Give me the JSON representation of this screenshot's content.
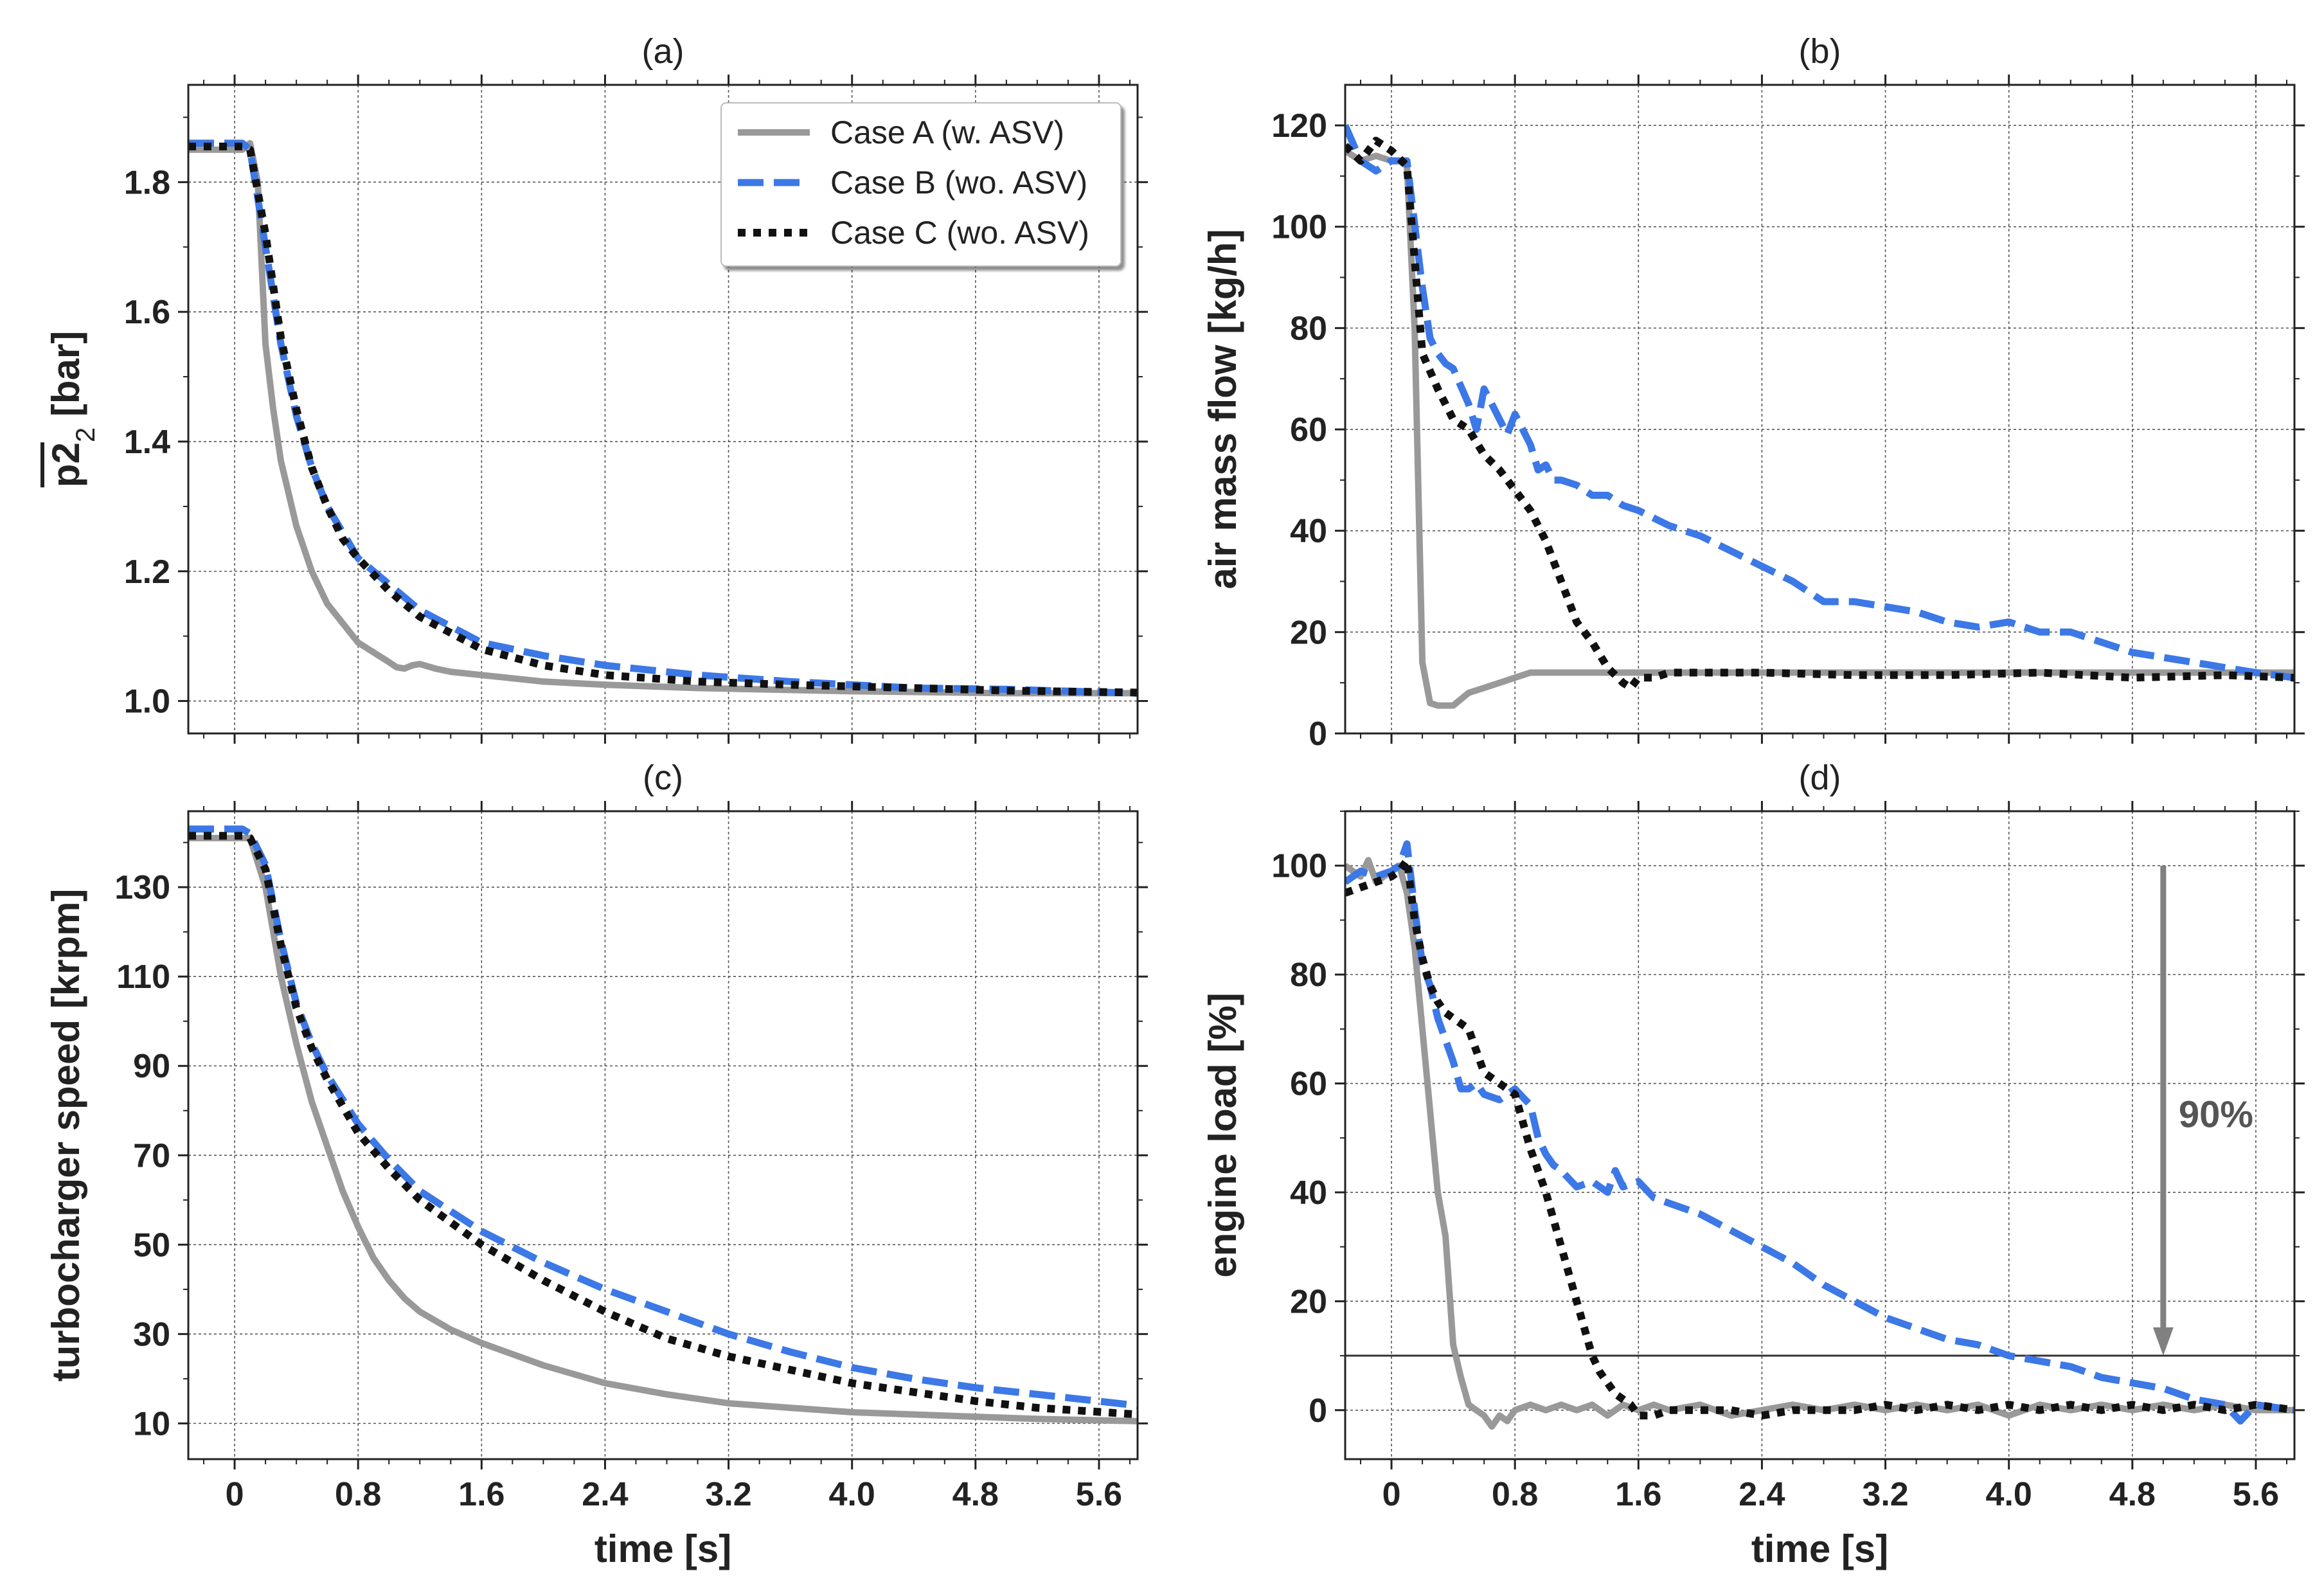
{
  "colors": {
    "case_a": "#999999",
    "case_b": "#3c78e6",
    "case_c": "#111111",
    "threshold": "#333333",
    "arrow": "#808080"
  },
  "legend": [
    "Case A (w.   ASV)",
    "Case B (wo. ASV)",
    "Case C (wo. ASV)"
  ],
  "chart_data": [
    {
      "id": "a",
      "type": "line",
      "title": "(a)",
      "xlabel": "",
      "ylabel": "p2 [bar]",
      "ylabel_subscript": "2",
      "ylabel_unit": " [bar]",
      "xlim": [
        -0.3,
        5.85
      ],
      "ylim": [
        0.95,
        1.95
      ],
      "xticks": [
        0,
        0.8,
        1.6,
        2.4,
        3.2,
        4.0,
        4.8,
        5.6
      ],
      "xtick_labels": [],
      "yticks": [
        1.0,
        1.2,
        1.4,
        1.6,
        1.8
      ],
      "ytick_labels": [
        "1.0",
        "1.2",
        "1.4",
        "1.6",
        "1.8"
      ],
      "legend_loc": "upper right",
      "series": [
        {
          "name": "Case A (w.   ASV)",
          "x": [
            -0.3,
            0.05,
            0.1,
            0.15,
            0.2,
            0.25,
            0.3,
            0.4,
            0.5,
            0.6,
            0.7,
            0.8,
            0.9,
            1.0,
            1.05,
            1.1,
            1.15,
            1.2,
            1.3,
            1.4,
            1.6,
            2.0,
            2.4,
            3.0,
            4.0,
            5.0,
            5.85
          ],
          "y": [
            1.85,
            1.85,
            1.86,
            1.8,
            1.55,
            1.45,
            1.37,
            1.27,
            1.2,
            1.15,
            1.12,
            1.09,
            1.075,
            1.06,
            1.052,
            1.05,
            1.055,
            1.057,
            1.05,
            1.045,
            1.04,
            1.03,
            1.025,
            1.02,
            1.015,
            1.012,
            1.012
          ]
        },
        {
          "name": "Case B (wo. ASV)",
          "x": [
            -0.3,
            0.05,
            0.1,
            0.2,
            0.3,
            0.4,
            0.5,
            0.6,
            0.7,
            0.8,
            1.0,
            1.2,
            1.6,
            2.0,
            2.4,
            3.0,
            3.6,
            4.4,
            5.0,
            5.85
          ],
          "y": [
            1.86,
            1.86,
            1.85,
            1.7,
            1.55,
            1.44,
            1.36,
            1.3,
            1.26,
            1.22,
            1.18,
            1.14,
            1.09,
            1.07,
            1.055,
            1.04,
            1.03,
            1.02,
            1.018,
            1.012
          ]
        },
        {
          "name": "Case C (wo. ASV)",
          "x": [
            -0.3,
            0.05,
            0.1,
            0.2,
            0.3,
            0.4,
            0.5,
            0.6,
            0.7,
            0.8,
            1.0,
            1.2,
            1.6,
            2.0,
            2.4,
            3.0,
            3.6,
            4.4,
            5.0,
            5.85
          ],
          "y": [
            1.855,
            1.855,
            1.85,
            1.72,
            1.56,
            1.45,
            1.36,
            1.3,
            1.25,
            1.22,
            1.17,
            1.13,
            1.08,
            1.055,
            1.04,
            1.03,
            1.025,
            1.02,
            1.016,
            1.013
          ]
        }
      ]
    },
    {
      "id": "b",
      "type": "line",
      "title": "(b)",
      "xlabel": "",
      "ylabel": "air mass flow [kg/h]",
      "xlim": [
        -0.3,
        5.85
      ],
      "ylim": [
        0,
        128
      ],
      "xticks": [
        0,
        0.8,
        1.6,
        2.4,
        3.2,
        4.0,
        4.8,
        5.6
      ],
      "xtick_labels": [],
      "yticks": [
        0,
        20,
        40,
        60,
        80,
        100,
        120
      ],
      "ytick_labels": [
        "0",
        "20",
        "40",
        "60",
        "80",
        "100",
        "120"
      ],
      "series": [
        {
          "name": "Case A (w.   ASV)",
          "x": [
            -0.3,
            -0.2,
            -0.1,
            0.0,
            0.05,
            0.1,
            0.15,
            0.2,
            0.25,
            0.3,
            0.35,
            0.4,
            0.5,
            0.6,
            0.7,
            0.8,
            0.9,
            5.85
          ],
          "y": [
            115,
            113,
            114,
            113,
            113,
            112,
            80,
            14,
            6,
            5.5,
            5.5,
            5.5,
            8,
            9,
            10,
            11,
            12,
            12
          ]
        },
        {
          "name": "Case B (wo. ASV)",
          "x": [
            -0.3,
            -0.2,
            -0.1,
            0.0,
            0.1,
            0.2,
            0.25,
            0.3,
            0.35,
            0.4,
            0.5,
            0.55,
            0.6,
            0.65,
            0.7,
            0.75,
            0.8,
            0.85,
            0.9,
            0.95,
            1.0,
            1.05,
            1.1,
            1.2,
            1.3,
            1.4,
            1.5,
            1.6,
            1.8,
            2.0,
            2.2,
            2.4,
            2.6,
            2.8,
            3.0,
            3.2,
            3.4,
            3.6,
            3.8,
            4.0,
            4.2,
            4.4,
            4.6,
            4.8,
            5.0,
            5.2,
            5.4,
            5.6,
            5.85
          ],
          "y": [
            120,
            113,
            111,
            113,
            113,
            88,
            78,
            75,
            73,
            72,
            65,
            60,
            68,
            65,
            62,
            59,
            63,
            60,
            57,
            52,
            53,
            50,
            50,
            49,
            47,
            47,
            45,
            44,
            41,
            39,
            36,
            33,
            30,
            26,
            26,
            25,
            24,
            22,
            21,
            22,
            20,
            20,
            18,
            16,
            15,
            14,
            13,
            12,
            11
          ]
        },
        {
          "name": "Case C (wo. ASV)",
          "x": [
            -0.3,
            -0.2,
            -0.1,
            0.0,
            0.1,
            0.2,
            0.3,
            0.4,
            0.5,
            0.6,
            0.7,
            0.8,
            0.9,
            1.0,
            1.1,
            1.2,
            1.3,
            1.4,
            1.5,
            1.55,
            1.6,
            1.7,
            1.8,
            2.0,
            2.4,
            3.0,
            3.6,
            4.2,
            4.8,
            5.4,
            5.85
          ],
          "y": [
            116,
            113,
            117,
            115,
            112,
            75,
            68,
            62,
            60,
            55,
            52,
            48,
            44,
            38,
            30,
            22,
            18,
            13,
            10,
            9,
            11,
            11,
            12,
            12,
            12,
            11.5,
            11.5,
            12,
            11,
            11.5,
            11
          ]
        }
      ]
    },
    {
      "id": "c",
      "type": "line",
      "title": "(c)",
      "xlabel": "time [s]",
      "ylabel": "turbocharger speed [krpm]",
      "xlim": [
        -0.3,
        5.85
      ],
      "ylim": [
        2,
        147
      ],
      "xticks": [
        0,
        0.8,
        1.6,
        2.4,
        3.2,
        4.0,
        4.8,
        5.6
      ],
      "xtick_labels": [
        "0",
        "0.8",
        "1.6",
        "2.4",
        "3.2",
        "4.0",
        "4.8",
        "5.6"
      ],
      "yticks": [
        10,
        30,
        50,
        70,
        90,
        110,
        130
      ],
      "ytick_labels": [
        "10",
        "30",
        "50",
        "70",
        "90",
        "110",
        "130"
      ],
      "series": [
        {
          "name": "Case A (w.   ASV)",
          "x": [
            -0.3,
            0.05,
            0.1,
            0.2,
            0.3,
            0.4,
            0.5,
            0.6,
            0.7,
            0.8,
            0.9,
            1.0,
            1.1,
            1.2,
            1.4,
            1.6,
            2.0,
            2.4,
            2.8,
            3.2,
            3.6,
            4.0,
            4.4,
            4.8,
            5.2,
            5.85
          ],
          "y": [
            141,
            141,
            141,
            130,
            110,
            95,
            82,
            72,
            62,
            54,
            47,
            42,
            38,
            35,
            31,
            28,
            23,
            19,
            16.5,
            14.5,
            13.5,
            12.5,
            12,
            11.5,
            11,
            10.5
          ]
        },
        {
          "name": "Case B (wo. ASV)",
          "x": [
            -0.3,
            0.05,
            0.1,
            0.2,
            0.3,
            0.4,
            0.5,
            0.6,
            0.8,
            1.0,
            1.2,
            1.6,
            2.0,
            2.4,
            2.8,
            3.2,
            3.6,
            4.0,
            4.4,
            4.8,
            5.2,
            5.85
          ],
          "y": [
            143,
            143,
            142,
            135,
            118,
            104,
            95,
            88,
            77,
            69,
            62,
            53,
            46,
            40,
            35,
            30,
            26,
            22.5,
            20,
            18,
            16.5,
            14
          ]
        },
        {
          "name": "Case C (wo. ASV)",
          "x": [
            -0.3,
            0.05,
            0.1,
            0.2,
            0.3,
            0.4,
            0.5,
            0.6,
            0.8,
            1.0,
            1.2,
            1.6,
            2.0,
            2.4,
            2.8,
            3.2,
            3.6,
            4.0,
            4.4,
            4.8,
            5.2,
            5.85
          ],
          "y": [
            141.5,
            141.5,
            141,
            134,
            117,
            103,
            94,
            87,
            75,
            67,
            60,
            50,
            42,
            35,
            29,
            25,
            22,
            19,
            17,
            15,
            13.5,
            12
          ]
        }
      ]
    },
    {
      "id": "d",
      "type": "line",
      "title": "(d)",
      "xlabel": "time [s]",
      "ylabel": "engine load [%]",
      "xlim": [
        -0.3,
        5.85
      ],
      "ylim": [
        -9,
        110
      ],
      "xticks": [
        0,
        0.8,
        1.6,
        2.4,
        3.2,
        4.0,
        4.8,
        5.6
      ],
      "xtick_labels": [
        "0",
        "0.8",
        "1.6",
        "2.4",
        "3.2",
        "4.0",
        "4.8",
        "5.6"
      ],
      "yticks": [
        0,
        20,
        40,
        60,
        80,
        100
      ],
      "ytick_labels": [
        "0",
        "20",
        "40",
        "60",
        "80",
        "100"
      ],
      "threshold": 10,
      "annotation": {
        "text": "90%",
        "arrow_x": 5.0,
        "arrow_from": 100,
        "arrow_to": 10,
        "text_x": 5.1,
        "text_y": 52
      },
      "series": [
        {
          "name": "Case A (w.   ASV)",
          "x": [
            -0.3,
            -0.2,
            -0.15,
            -0.1,
            0.0,
            0.05,
            0.1,
            0.15,
            0.2,
            0.25,
            0.3,
            0.35,
            0.4,
            0.45,
            0.5,
            0.55,
            0.6,
            0.65,
            0.7,
            0.75,
            0.8,
            0.9,
            1.0,
            1.1,
            1.2,
            1.3,
            1.4,
            1.5,
            1.6,
            1.7,
            1.8,
            2.0,
            2.2,
            2.4,
            2.6,
            2.8,
            3.0,
            3.2,
            3.4,
            3.6,
            3.8,
            4.0,
            4.2,
            4.4,
            4.6,
            4.8,
            5.0,
            5.2,
            5.4,
            5.6,
            5.85
          ],
          "y": [
            100,
            98,
            101,
            97,
            99,
            100,
            95,
            85,
            70,
            55,
            40,
            32,
            12,
            6,
            1,
            0,
            -1,
            -3,
            -1,
            -2,
            0,
            1,
            0,
            1,
            0,
            1,
            -1,
            1,
            0,
            1,
            0,
            1,
            -1,
            0,
            1,
            0,
            1,
            0,
            1,
            0,
            1,
            -1,
            1,
            0,
            1,
            0,
            1,
            0,
            1,
            0,
            0
          ]
        },
        {
          "name": "Case B (wo. ASV)",
          "x": [
            -0.3,
            -0.2,
            -0.1,
            0.0,
            0.05,
            0.1,
            0.15,
            0.2,
            0.25,
            0.3,
            0.35,
            0.4,
            0.45,
            0.5,
            0.55,
            0.6,
            0.7,
            0.8,
            0.9,
            0.95,
            1.0,
            1.05,
            1.1,
            1.2,
            1.3,
            1.4,
            1.45,
            1.5,
            1.6,
            1.7,
            1.8,
            1.9,
            2.0,
            2.2,
            2.4,
            2.6,
            2.8,
            3.0,
            3.2,
            3.4,
            3.6,
            3.8,
            4.0,
            4.2,
            4.4,
            4.6,
            4.8,
            5.0,
            5.2,
            5.4,
            5.5,
            5.6,
            5.85
          ],
          "y": [
            97,
            99,
            98,
            99,
            100,
            104,
            92,
            82,
            78,
            72,
            68,
            64,
            59,
            59,
            60,
            58,
            57,
            59,
            56,
            50,
            47,
            45,
            44,
            41,
            42,
            40,
            44,
            41,
            42,
            39,
            38,
            37,
            36,
            33,
            30,
            27,
            23,
            20,
            17,
            15,
            13,
            12,
            10,
            9,
            8,
            6,
            5,
            4,
            2,
            1,
            -2,
            1,
            0
          ]
        },
        {
          "name": "Case C (wo. ASV)",
          "x": [
            -0.3,
            -0.2,
            -0.1,
            0.0,
            0.05,
            0.1,
            0.15,
            0.2,
            0.25,
            0.3,
            0.35,
            0.4,
            0.5,
            0.6,
            0.7,
            0.8,
            0.9,
            1.0,
            1.1,
            1.2,
            1.3,
            1.35,
            1.4,
            1.45,
            1.5,
            1.55,
            1.6,
            1.7,
            1.8,
            2.0,
            2.2,
            2.4,
            2.6,
            2.8,
            3.0,
            3.2,
            3.4,
            3.6,
            3.8,
            4.0,
            4.2,
            4.4,
            4.6,
            4.8,
            5.0,
            5.2,
            5.4,
            5.6,
            5.85
          ],
          "y": [
            95,
            96,
            97,
            98,
            99,
            101,
            90,
            83,
            78,
            75,
            73,
            72,
            70,
            62,
            60,
            58,
            48,
            40,
            30,
            20,
            10,
            7,
            5,
            3,
            2,
            1,
            -1,
            -1,
            0,
            0,
            0,
            -1,
            0,
            0,
            0,
            1,
            0,
            1,
            0,
            1,
            0,
            1,
            0,
            1,
            0,
            1,
            0,
            1,
            0
          ]
        }
      ]
    }
  ]
}
